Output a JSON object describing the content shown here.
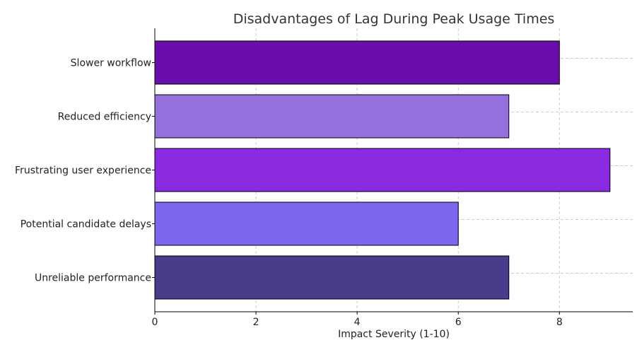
{
  "chart_data": {
    "type": "bar",
    "orientation": "horizontal",
    "title": "Disadvantages of Lag During Peak Usage Times",
    "xlabel": "Impact Severity (1-10)",
    "ylabel": "",
    "xlim": [
      0,
      9.45
    ],
    "xticks": [
      0,
      2,
      4,
      6,
      8
    ],
    "grid": true,
    "categories": [
      "Slower workflow",
      "Reduced efficiency",
      "Frustrating user experience",
      "Potential candidate delays",
      "Unreliable performance"
    ],
    "values": [
      8,
      7,
      9,
      6,
      7
    ],
    "colors": [
      "#6a0dad",
      "#9370db",
      "#8a2be2",
      "#7b68ee",
      "#483d8b"
    ]
  }
}
